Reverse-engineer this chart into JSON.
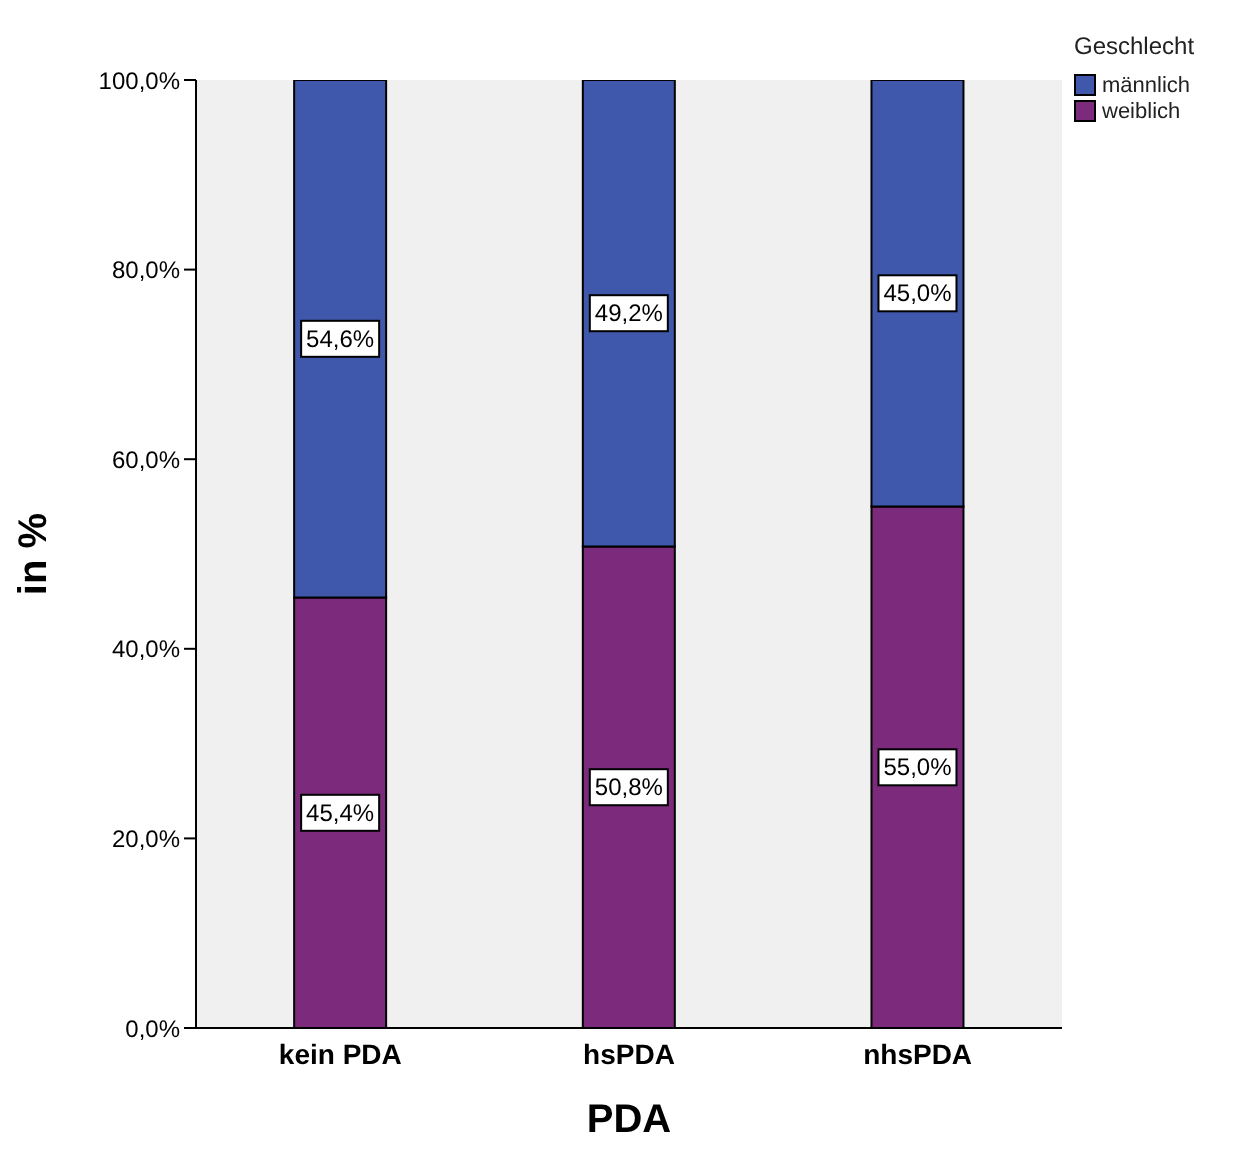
{
  "chart_data": {
    "type": "bar",
    "stacked": true,
    "xlabel": "PDA",
    "ylabel": "in %",
    "legend_title": "Geschlecht",
    "legend": "top right",
    "grid": false,
    "categories": [
      "kein PDA",
      "hsPDA",
      "nhsPDA"
    ],
    "series": [
      {
        "name": "weiblich",
        "color": "#7b2a7c",
        "values": [
          45.4,
          50.8,
          55.0
        ],
        "value_labels": [
          "45,4%",
          "50,8%",
          "55,0%"
        ]
      },
      {
        "name": "männlich",
        "color": "#3f58ab",
        "values": [
          54.6,
          49.2,
          45.0
        ],
        "value_labels": [
          "54,6%",
          "49,2%",
          "45,0%"
        ]
      }
    ],
    "ylim": [
      0,
      100
    ],
    "yticks": [
      {
        "value": 0,
        "label": "0,0%"
      },
      {
        "value": 20,
        "label": "20,0%"
      },
      {
        "value": 40,
        "label": "40,0%"
      },
      {
        "value": 60,
        "label": "60,0%"
      },
      {
        "value": 80,
        "label": "80,0%"
      },
      {
        "value": 100,
        "label": "100,0%"
      }
    ]
  }
}
